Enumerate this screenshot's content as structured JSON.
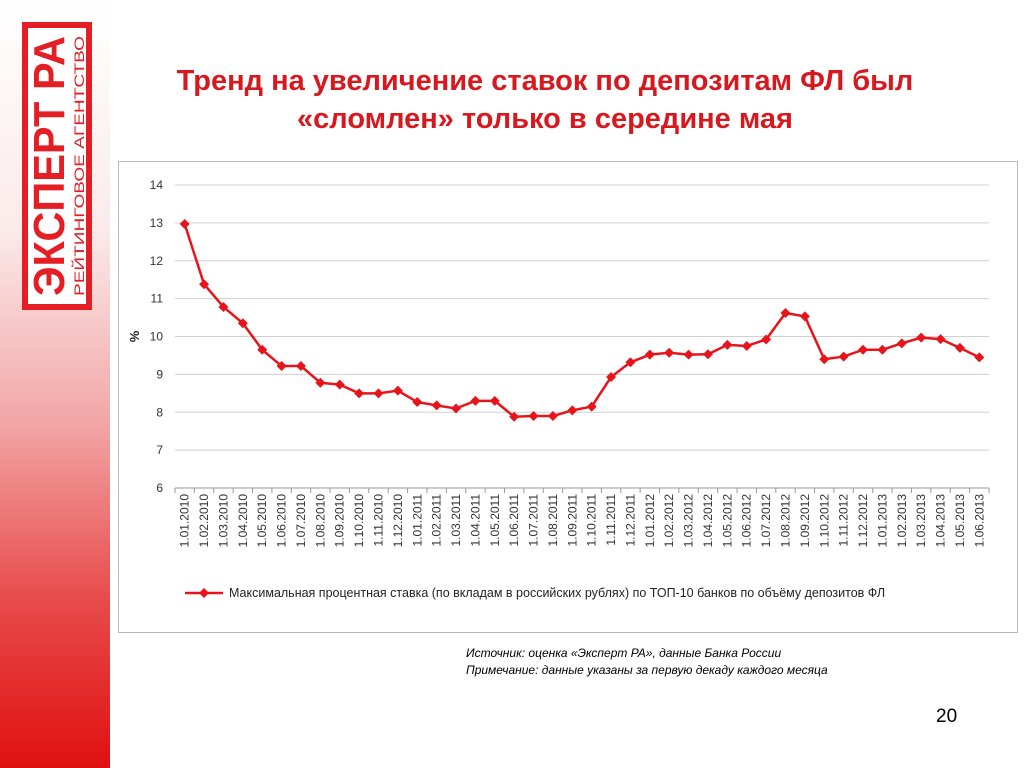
{
  "logo": {
    "main_text": "ЭКСПЕРТ РА",
    "sub_text": "РЕЙТИНГОВОЕ АГЕНТСТВО"
  },
  "title": {
    "line1": "Тренд на увеличение ставок по депозитам ФЛ был",
    "line2": "«сломлен» только в середине мая"
  },
  "source_note": {
    "source": "Источник: оценка «Эксперт РА», данные Банка России",
    "note": "Примечание: данные указаны за первую декаду каждого месяца"
  },
  "page_number": "20",
  "colors": {
    "accent": "#d7191f",
    "series": "#e8141b",
    "grid": "#d0d0d0"
  },
  "chart_data": {
    "type": "line",
    "ylabel": "%",
    "ylim": [
      6,
      14
    ],
    "yticks": [
      6,
      7,
      8,
      9,
      10,
      11,
      12,
      13,
      14
    ],
    "grid": true,
    "legend_position": "bottom",
    "categories": [
      "1.01.2010",
      "1.02.2010",
      "1.03.2010",
      "1.04.2010",
      "1.05.2010",
      "1.06.2010",
      "1.07.2010",
      "1.08.2010",
      "1.09.2010",
      "1.10.2010",
      "1.11.2010",
      "1.12.2010",
      "1.01.2011",
      "1.02.2011",
      "1.03.2011",
      "1.04.2011",
      "1.05.2011",
      "1.06.2011",
      "1.07.2011",
      "1.08.2011",
      "1.09.2011",
      "1.10.2011",
      "1.11.2011",
      "1.12.2011",
      "1.01.2012",
      "1.02.2012",
      "1.03.2012",
      "1.04.2012",
      "1.05.2012",
      "1.06.2012",
      "1.07.2012",
      "1.08.2012",
      "1.09.2012",
      "1.10.2012",
      "1.11.2012",
      "1.12.2012",
      "1.01.2013",
      "1.02.2013",
      "1.03.2013",
      "1.04.2013",
      "1.05.2013",
      "1.06.2013"
    ],
    "series": [
      {
        "name": "Максимальная процентная ставка (по вкладам в российских рублях) по ТОП-10 банков по объёму депозитов ФЛ",
        "values": [
          12.97,
          11.38,
          10.78,
          10.35,
          9.65,
          9.22,
          9.22,
          8.78,
          8.73,
          8.5,
          8.5,
          8.57,
          8.27,
          8.18,
          8.1,
          8.3,
          8.3,
          7.88,
          7.9,
          7.9,
          8.05,
          8.15,
          8.93,
          9.32,
          9.52,
          9.57,
          9.52,
          9.53,
          9.78,
          9.75,
          9.92,
          10.62,
          10.53,
          9.4,
          9.47,
          9.65,
          9.65,
          9.82,
          9.97,
          9.93,
          9.7,
          9.45
        ]
      }
    ]
  }
}
